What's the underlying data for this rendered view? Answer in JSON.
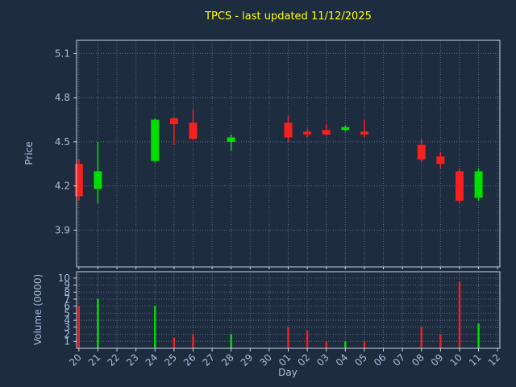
{
  "chart_data": {
    "type": "candlestick",
    "title": "TPCS - last updated 11/12/2025",
    "xlabel": "Day",
    "price_axis": {
      "label": "Price",
      "ticks": [
        3.9,
        4.2,
        4.5,
        4.8,
        5.1
      ],
      "ylim": [
        3.65,
        5.19
      ]
    },
    "volume_axis": {
      "label": "Volume (0000)",
      "ticks": [
        1,
        2,
        3,
        4,
        5,
        6,
        7,
        8,
        9,
        10
      ],
      "ylim": [
        0,
        10.9
      ]
    },
    "x_tick_rotation": 45,
    "grid": true,
    "day_labels": [
      "20",
      "21",
      "22",
      "23",
      "24",
      "25",
      "26",
      "27",
      "28",
      "29",
      "30",
      "01",
      "02",
      "03",
      "04",
      "05",
      "06",
      "07",
      "08",
      "09",
      "10",
      "11",
      "12"
    ],
    "candles": [
      {
        "day": "20",
        "index": 0,
        "open": 4.35,
        "high": 4.38,
        "low": 4.1,
        "close": 4.13,
        "volume": 6.0
      },
      {
        "day": "21",
        "index": 1,
        "open": 4.18,
        "high": 4.5,
        "low": 4.08,
        "close": 4.3,
        "volume": 7.0
      },
      {
        "day": "24",
        "index": 4,
        "open": 4.37,
        "high": 4.66,
        "low": 4.36,
        "close": 4.65,
        "volume": 6.0
      },
      {
        "day": "25",
        "index": 5,
        "open": 4.66,
        "high": 4.67,
        "low": 4.48,
        "close": 4.62,
        "volume": 1.5
      },
      {
        "day": "26",
        "index": 6,
        "open": 4.63,
        "high": 4.72,
        "low": 4.51,
        "close": 4.52,
        "volume": 2.0
      },
      {
        "day": "28",
        "index": 8,
        "open": 4.5,
        "high": 4.55,
        "low": 4.44,
        "close": 4.53,
        "volume": 2.0
      },
      {
        "day": "01",
        "index": 11,
        "open": 4.63,
        "high": 4.68,
        "low": 4.5,
        "close": 4.53,
        "volume": 3.0
      },
      {
        "day": "02",
        "index": 12,
        "open": 4.57,
        "high": 4.59,
        "low": 4.53,
        "close": 4.55,
        "volume": 2.5
      },
      {
        "day": "03",
        "index": 13,
        "open": 4.58,
        "high": 4.62,
        "low": 4.54,
        "close": 4.55,
        "volume": 1.0
      },
      {
        "day": "04",
        "index": 14,
        "open": 4.58,
        "high": 4.61,
        "low": 4.57,
        "close": 4.6,
        "volume": 1.0
      },
      {
        "day": "05",
        "index": 15,
        "open": 4.57,
        "high": 4.65,
        "low": 4.53,
        "close": 4.55,
        "volume": 1.0
      },
      {
        "day": "08",
        "index": 18,
        "open": 4.48,
        "high": 4.52,
        "low": 4.36,
        "close": 4.38,
        "volume": 3.0
      },
      {
        "day": "09",
        "index": 19,
        "open": 4.4,
        "high": 4.43,
        "low": 4.32,
        "close": 4.35,
        "volume": 2.0
      },
      {
        "day": "10",
        "index": 20,
        "open": 4.3,
        "high": 4.32,
        "low": 4.08,
        "close": 4.1,
        "volume": 9.5
      },
      {
        "day": "11",
        "index": 21,
        "open": 4.12,
        "high": 4.32,
        "low": 4.1,
        "close": 4.3,
        "volume": 3.5
      }
    ],
    "colors": {
      "up": "#00e000",
      "down": "#f52020",
      "background": "#1e2c40",
      "text": "#a7bdd9",
      "title": "#ffff00",
      "grid": "#95a9c0",
      "spine": "#c6d2e0"
    }
  }
}
